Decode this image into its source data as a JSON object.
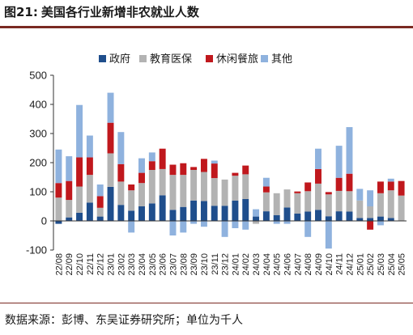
{
  "figure": {
    "number": "图21:",
    "title": "美国各行业新增非农就业人数",
    "source": "数据来源：彭博、东吴证券研究所；单位为千人"
  },
  "chart_data": {
    "type": "bar",
    "stacked": true,
    "ylim": [
      -100,
      500
    ],
    "yticks": [
      -100,
      0,
      100,
      200,
      300,
      400,
      500
    ],
    "grid": false,
    "legend": "top",
    "categories": [
      "22/08",
      "22/09",
      "22/10",
      "22/11",
      "22/12",
      "23/01",
      "23/02",
      "23/03",
      "23/04",
      "23/05",
      "23/06",
      "23/07",
      "23/08",
      "23/09",
      "23/10",
      "23/11",
      "23/12",
      "24/01",
      "24/02",
      "24/03",
      "24/04",
      "24/05",
      "24/06",
      "24/07",
      "24/08",
      "24/09",
      "24/10",
      "24/11",
      "24/12",
      "25/01",
      "25/02",
      "25/03",
      "25/04",
      "25/05"
    ],
    "series": [
      {
        "name": "政府",
        "color": "#1f4e8c",
        "values": [
          -10,
          12,
          28,
          63,
          15,
          117,
          55,
          35,
          50,
          60,
          88,
          38,
          48,
          70,
          68,
          52,
          52,
          70,
          75,
          15,
          33,
          20,
          46,
          25,
          32,
          38,
          16,
          33,
          32,
          10,
          10,
          15,
          10,
          0
        ]
      },
      {
        "name": "教育医保",
        "color": "#b3b3b3",
        "values": [
          80,
          60,
          90,
          95,
          30,
          115,
          80,
          70,
          80,
          115,
          90,
          120,
          110,
          105,
          100,
          95,
          90,
          85,
          85,
          -10,
          65,
          75,
          62,
          70,
          70,
          90,
          75,
          70,
          70,
          60,
          40,
          80,
          95,
          87
        ]
      },
      {
        "name": "休闲餐旅",
        "color": "#c0181d",
        "values": [
          50,
          65,
          100,
          60,
          40,
          105,
          60,
          20,
          35,
          30,
          70,
          35,
          40,
          10,
          45,
          50,
          0,
          10,
          30,
          0,
          20,
          0,
          0,
          6,
          30,
          50,
          8,
          45,
          60,
          0,
          -30,
          40,
          30,
          50
        ]
      },
      {
        "name": "其他",
        "color": "#8fb2de",
        "values": [
          115,
          85,
          180,
          75,
          40,
          103,
          110,
          -40,
          50,
          30,
          0,
          -50,
          -40,
          -10,
          -20,
          10,
          -55,
          -25,
          -30,
          25,
          30,
          -10,
          -10,
          0,
          -55,
          70,
          -95,
          110,
          160,
          40,
          55,
          -15,
          10,
          0
        ]
      }
    ]
  }
}
